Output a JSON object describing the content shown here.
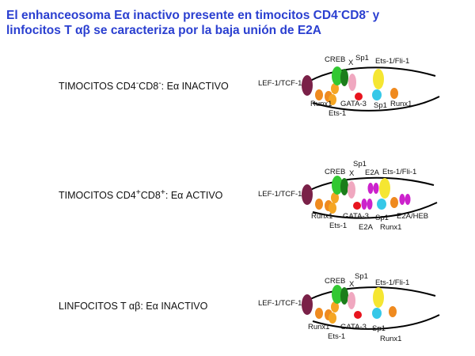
{
  "title": {
    "line1_a": "El enhanceosoma E",
    "line1_b": "α",
    "line1_c": " inactivo presente en timocitos  CD4",
    "line1_sup1": "-",
    "line1_d": "CD8",
    "line1_sup2": "-",
    "line1_e": " y",
    "line2_a": "linfocitos T ",
    "line2_b": "αβ",
    "line2_c": " se caracteriza por la baja unión de E2A"
  },
  "rows": [
    {
      "label_a": "TIMOCITOS CD4",
      "sup1": "-",
      "label_b": "CD8",
      "sup2": "-",
      "label_c": ": Eα INACTIVO",
      "factors": {
        "lef": "LEF-1/TCF-1",
        "creb": "CREB",
        "x": "X",
        "sp1_top": "Sp1",
        "ets_fli": "Ets-1/Fli-1",
        "runx1_left": "Runx1",
        "ets1": "Ets-1",
        "gata3": "GATA-3",
        "sp1_bottom": "Sp1",
        "runx1_right": "Runx1"
      }
    },
    {
      "label_a": "TIMOCITOS CD4",
      "sup1": "+",
      "label_b": "CD8",
      "sup2": "+",
      "label_c": ": Eα ACTIVO",
      "factors": {
        "lef": "LEF-1/TCF-1",
        "creb": "CREB",
        "x": "X",
        "sp1_top": "Sp1",
        "e2a_top": "E2A",
        "ets_fli": "Ets-1/Fli-1",
        "runx1_left": "Runx1",
        "ets1": "Ets-1",
        "gata3": "GATA-3",
        "e2a_bottom": "E2A",
        "sp1_bottom": "Sp1",
        "runx1_right": "Runx1",
        "e2a_heb": "E2A/HEB"
      }
    },
    {
      "label_a": "LINFOCITOS T ",
      "label_b": "αβ",
      "label_c": ": Eα INACTIVO",
      "factors": {
        "lef": "LEF-1/TCF-1",
        "creb": "CREB",
        "x": "X",
        "sp1_top": "Sp1",
        "ets_fli": "Ets-1/Fli-1",
        "runx1_left": "Runx1",
        "ets1": "Ets-1",
        "gata3": "GATA-3",
        "sp1_bottom": "Sp1",
        "runx1_right": "Runx1"
      }
    }
  ],
  "colors": {
    "title": "#2a3fd0",
    "lef": "#7a2148",
    "runx1": "#ef8a1f",
    "ets1": "#f5a623",
    "creb": "#32c832",
    "x_factor": "#1b7d1b",
    "gata3": "#e8141e",
    "sp1": "#f0a8c0",
    "ets_fli": "#f5e632",
    "sp1_blue": "#36c8e8",
    "e2a": "#cc22cc"
  }
}
